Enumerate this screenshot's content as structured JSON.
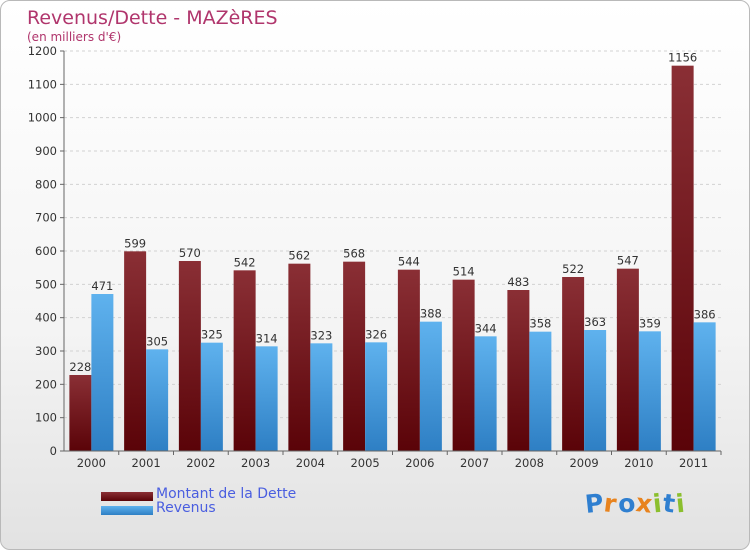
{
  "title": "Revenus/Dette - MAZèRES",
  "subtitle": "(en milliers d'€)",
  "colors": {
    "debt_top": "#8a2f35",
    "debt_bottom": "#5a0308",
    "revenue_top": "#5fb2ee",
    "revenue_bottom": "#2e7fc4",
    "title": "#b0356c",
    "legend_text": "#4a5ee0"
  },
  "chart_data": {
    "type": "bar",
    "title": "Revenus/Dette - MAZèRES",
    "subtitle": "(en milliers d'€)",
    "categories": [
      "2000",
      "2001",
      "2002",
      "2003",
      "2004",
      "2005",
      "2006",
      "2007",
      "2008",
      "2009",
      "2010",
      "2011"
    ],
    "series": [
      {
        "name": "Montant de la Dette",
        "values": [
          228,
          599,
          570,
          542,
          562,
          568,
          544,
          514,
          483,
          522,
          547,
          1156
        ]
      },
      {
        "name": "Revenus",
        "values": [
          471,
          305,
          325,
          314,
          323,
          326,
          388,
          344,
          358,
          363,
          359,
          386
        ]
      }
    ],
    "ylim": [
      0,
      1200
    ],
    "yticks": [
      "0",
      "100",
      "200",
      "300",
      "400",
      "500",
      "600",
      "700",
      "800",
      "900",
      "1000",
      "1100",
      "1200"
    ],
    "grid": true,
    "legend": "bottom-left"
  },
  "legend": {
    "debt_label": "Montant de la Dette",
    "revenue_label": "Revenus"
  },
  "logo": {
    "letters": [
      "P",
      "r",
      "o",
      "x",
      "i",
      "t",
      "i"
    ],
    "colors": [
      "#2f7fd0",
      "#e8831e",
      "#2f7fd0",
      "#e8831e",
      "#8bbf2e",
      "#2f7fd0",
      "#8bbf2e"
    ]
  }
}
